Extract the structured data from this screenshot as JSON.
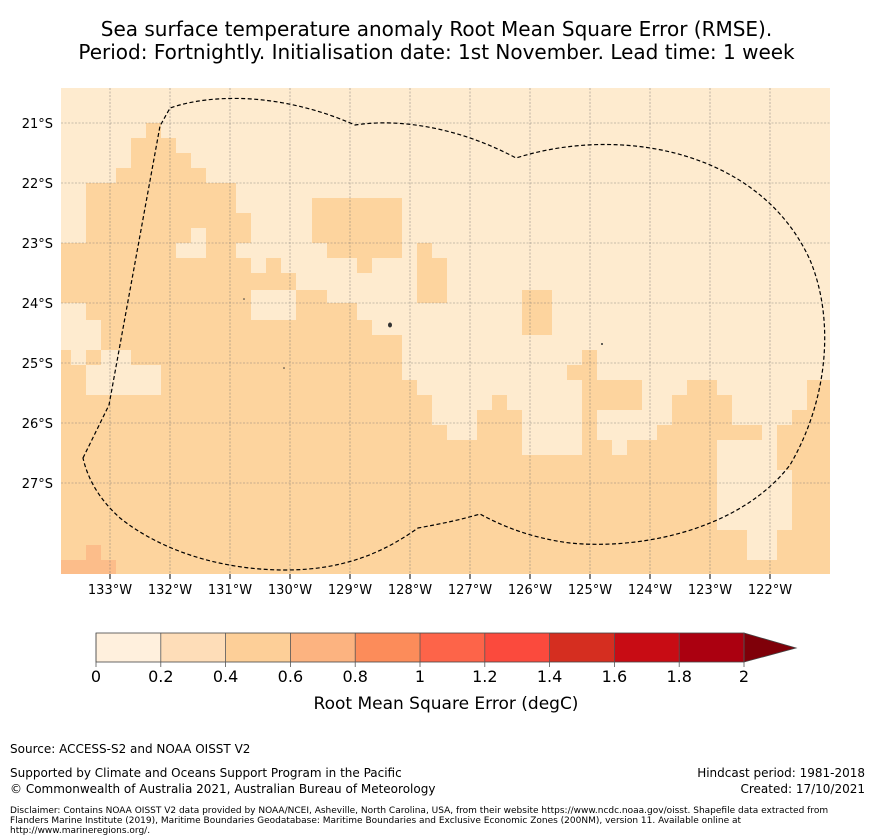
{
  "title_line1": "Sea surface temperature anomaly Root Mean Square Error (RMSE).",
  "title_line2": "Period: Fortnightly. Initialisation date: 1st November. Lead time: 1 week",
  "map": {
    "lon_labels": [
      "133°W",
      "132°W",
      "131°W",
      "130°W",
      "129°W",
      "128°W",
      "127°W",
      "126°W",
      "125°W",
      "124°W",
      "123°W",
      "122°W"
    ],
    "lat_labels": [
      "21°S",
      "22°S",
      "23°S",
      "24°S",
      "25°S",
      "26°S",
      "27°S"
    ],
    "region": "Pitcairn Islands EEZ (dashed boundary)",
    "field_levels": {
      "light": "0.2–0.4",
      "medium": "0.4–0.6"
    }
  },
  "colorbar": {
    "label": "Root Mean Square Error (degC)",
    "ticks": [
      "0",
      "0.2",
      "0.4",
      "0.6",
      "0.8",
      "1",
      "1.2",
      "1.4",
      "1.6",
      "1.8",
      "2"
    ],
    "colors": [
      "#fff0dd",
      "#feddb8",
      "#fdcf98",
      "#fcb380",
      "#fc8c5a",
      "#fd6449",
      "#fb4a3d",
      "#d52e20",
      "#c80c14",
      "#ab0010"
    ],
    "extend_color": "#7f0009"
  },
  "footer": {
    "source": "Source: ACCESS-S2 and NOAA OISST V2",
    "supported": "Supported by Climate and Oceans Support Program in the Pacific",
    "copyright": "© Commonwealth of Australia 2021, Australian Bureau of Meteorology",
    "hindcast": "Hindcast period: 1981-2018",
    "created": "Created: 17/10/2021",
    "disclaimer": "Disclaimer: Contains NOAA OISST V2 data provided by NOAA/NCEI, Asheville, North Carolina, USA, from their website https://www.ncdc.noaa.gov/oisst. Shapefile data extracted from Flanders Marine Institute (2019), Maritime Boundaries Geodatabase: Maritime Boundaries and Exclusive Economic Zones (200NM), version 11. Available online at http://www.marineregions.org/."
  }
}
